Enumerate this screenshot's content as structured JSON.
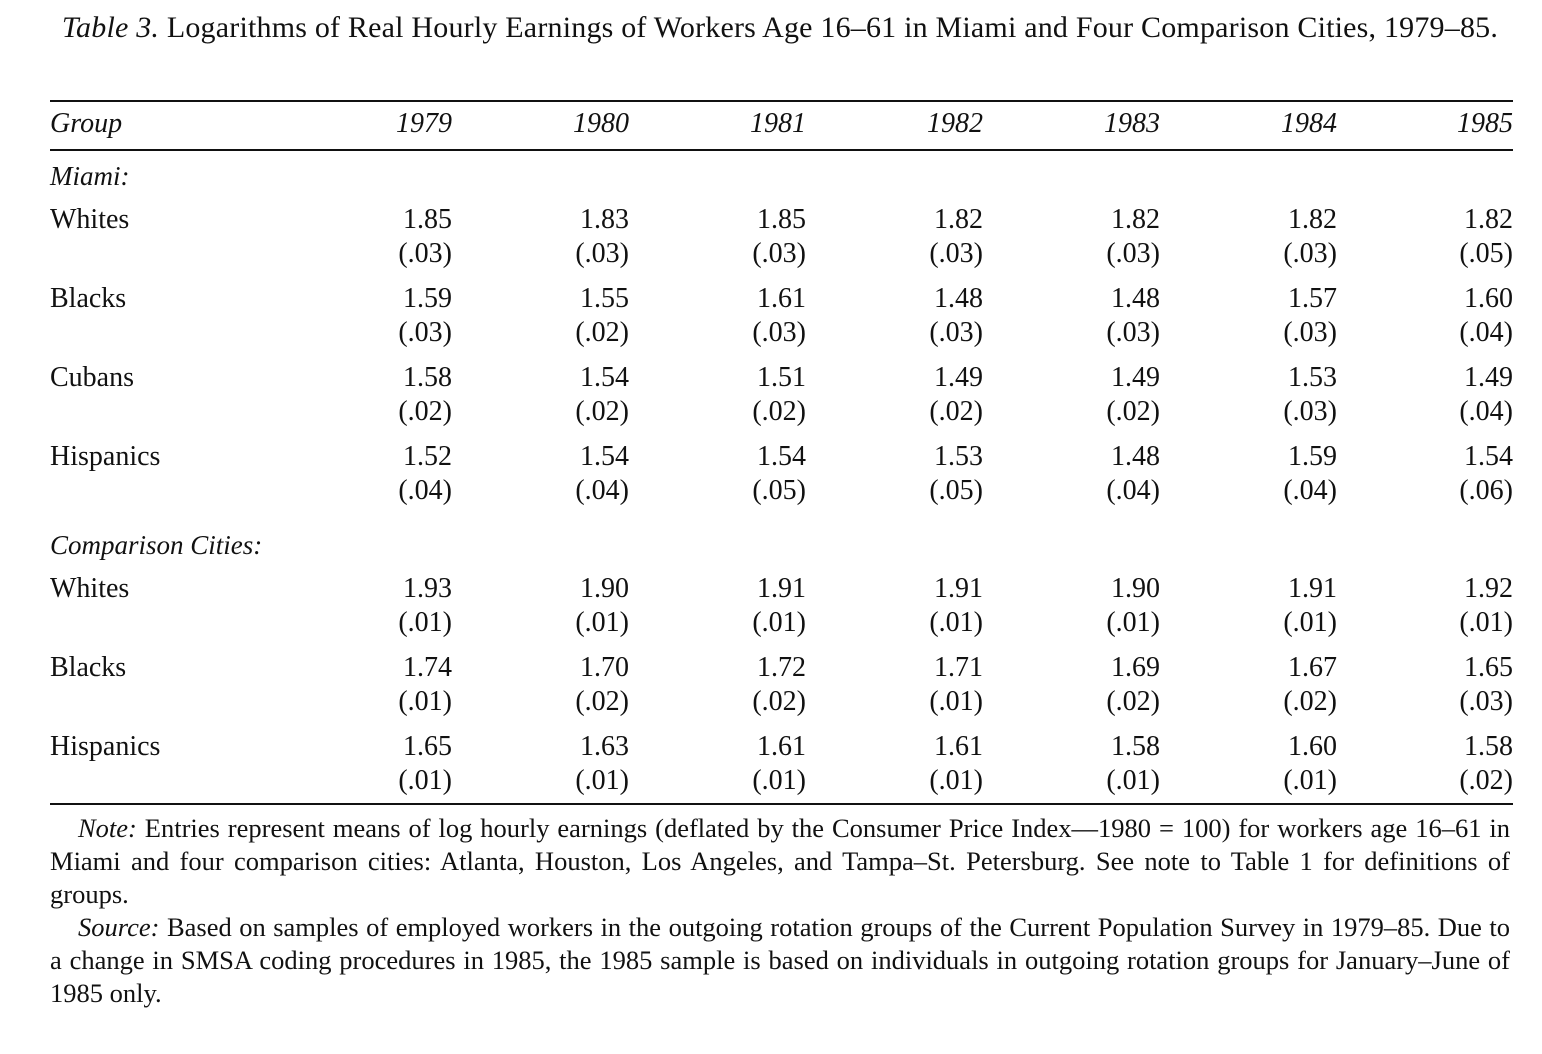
{
  "caption": {
    "label": "Table  3.",
    "title": "Logarithms of Real Hourly Earnings of Workers Age 16–61 in Miami and Four Comparison Cities, 1979–85."
  },
  "table": {
    "group_header": "Group",
    "years": [
      "1979",
      "1980",
      "1981",
      "1982",
      "1983",
      "1984",
      "1985"
    ],
    "sections": [
      {
        "label": "Miami:",
        "rows": [
          {
            "group": "Whites",
            "means": [
              "1.85",
              "1.83",
              "1.85",
              "1.82",
              "1.82",
              "1.82",
              "1.82"
            ],
            "se": [
              "(.03)",
              "(.03)",
              "(.03)",
              "(.03)",
              "(.03)",
              "(.03)",
              "(.05)"
            ]
          },
          {
            "group": "Blacks",
            "means": [
              "1.59",
              "1.55",
              "1.61",
              "1.48",
              "1.48",
              "1.57",
              "1.60"
            ],
            "se": [
              "(.03)",
              "(.02)",
              "(.03)",
              "(.03)",
              "(.03)",
              "(.03)",
              "(.04)"
            ]
          },
          {
            "group": "Cubans",
            "means": [
              "1.58",
              "1.54",
              "1.51",
              "1.49",
              "1.49",
              "1.53",
              "1.49"
            ],
            "se": [
              "(.02)",
              "(.02)",
              "(.02)",
              "(.02)",
              "(.02)",
              "(.03)",
              "(.04)"
            ]
          },
          {
            "group": "Hispanics",
            "means": [
              "1.52",
              "1.54",
              "1.54",
              "1.53",
              "1.48",
              "1.59",
              "1.54"
            ],
            "se": [
              "(.04)",
              "(.04)",
              "(.05)",
              "(.05)",
              "(.04)",
              "(.04)",
              "(.06)"
            ]
          }
        ]
      },
      {
        "label": "Comparison Cities:",
        "rows": [
          {
            "group": "Whites",
            "means": [
              "1.93",
              "1.90",
              "1.91",
              "1.91",
              "1.90",
              "1.91",
              "1.92"
            ],
            "se": [
              "(.01)",
              "(.01)",
              "(.01)",
              "(.01)",
              "(.01)",
              "(.01)",
              "(.01)"
            ]
          },
          {
            "group": "Blacks",
            "means": [
              "1.74",
              "1.70",
              "1.72",
              "1.71",
              "1.69",
              "1.67",
              "1.65"
            ],
            "se": [
              "(.01)",
              "(.02)",
              "(.02)",
              "(.01)",
              "(.02)",
              "(.02)",
              "(.03)"
            ]
          },
          {
            "group": "Hispanics",
            "means": [
              "1.65",
              "1.63",
              "1.61",
              "1.61",
              "1.58",
              "1.60",
              "1.58"
            ],
            "se": [
              "(.01)",
              "(.01)",
              "(.01)",
              "(.01)",
              "(.01)",
              "(.01)",
              "(.02)"
            ]
          }
        ]
      }
    ]
  },
  "notes": {
    "note_label": "Note:",
    "note_text": " Entries represent means of log hourly earnings (deflated by the Consumer Price Index—1980 = 100) for workers age 16–61 in Miami and four comparison cities: Atlanta, Houston, Los Angeles, and Tampa–St. Petersburg. See note to Table 1 for definitions of groups.",
    "source_label": "Source:",
    "source_text": " Based on samples of employed workers in the outgoing rotation groups of the Current Population Survey in 1979–85. Due to a change in SMSA coding procedures in 1985, the 1985 sample is based on individuals in outgoing rotation groups for January–June of 1985 only."
  }
}
